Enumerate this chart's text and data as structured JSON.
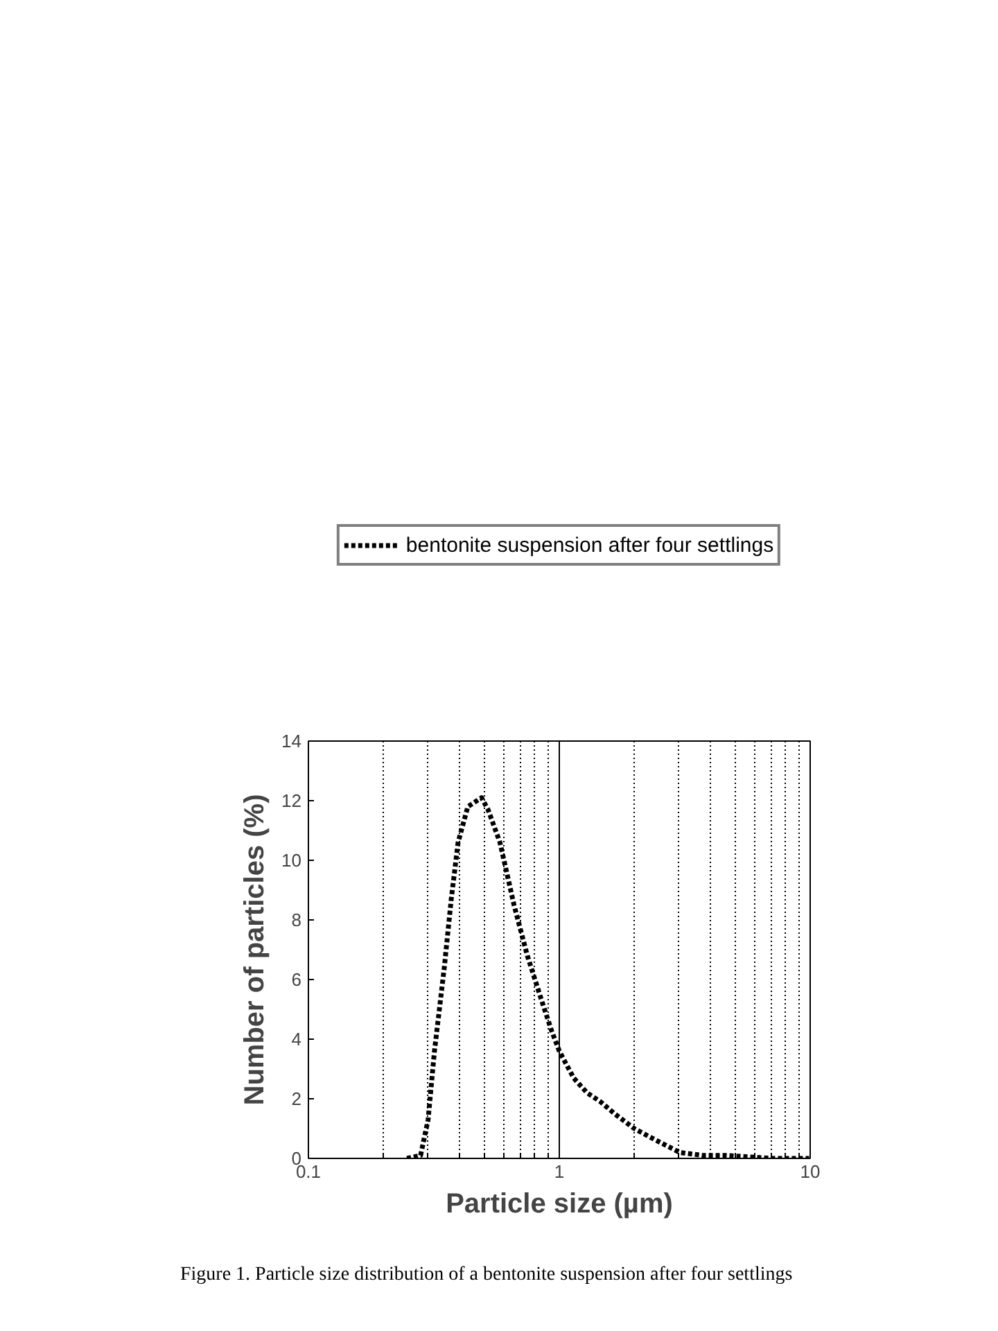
{
  "chart_data": {
    "type": "line",
    "xlabel": "Particle size (µm)",
    "ylabel": "Number of particles (%)",
    "series": [
      {
        "name": "bentonite suspension after four settlings",
        "color": "#000000",
        "line_style": "dotted",
        "x": [
          0.247,
          0.28,
          0.3,
          0.318,
          0.348,
          0.371,
          0.395,
          0.432,
          0.49,
          0.52,
          0.58,
          0.66,
          0.746,
          0.85,
          0.93,
          1.0,
          1.14,
          1.29,
          1.46,
          1.66,
          1.99,
          2.44,
          3.02,
          3.75,
          4.6,
          7.1,
          9.9
        ],
        "values": [
          0,
          0.1,
          1.3,
          3.6,
          6.4,
          8.7,
          10.6,
          11.8,
          12.1,
          11.7,
          10.6,
          8.5,
          6.8,
          5.3,
          4.3,
          3.6,
          2.7,
          2.2,
          1.9,
          1.5,
          1.0,
          0.6,
          0.2,
          0.1,
          0.1,
          0.0,
          0
        ]
      }
    ],
    "log": "x",
    "xlim": [
      0.1,
      10
    ],
    "ylim": [
      0,
      14
    ],
    "xticks": [
      {
        "value": 0.1,
        "label": "0.1"
      },
      {
        "value": 0.2,
        "label": null
      },
      {
        "value": 0.3,
        "label": null
      },
      {
        "value": 0.4,
        "label": null
      },
      {
        "value": 0.5,
        "label": null
      },
      {
        "value": 0.6,
        "label": null
      },
      {
        "value": 0.7,
        "label": null
      },
      {
        "value": 0.8,
        "label": null
      },
      {
        "value": 0.9,
        "label": null
      },
      1,
      {
        "value": 2,
        "label": null
      },
      {
        "value": 3,
        "label": null
      },
      {
        "value": 4,
        "label": null
      },
      {
        "value": 5,
        "label": null
      },
      {
        "value": 6,
        "label": null
      },
      {
        "value": 7,
        "label": null
      },
      {
        "value": 8,
        "label": null
      },
      {
        "value": 9,
        "label": null
      },
      10
    ],
    "yticks": [
      0,
      2,
      4,
      6,
      8,
      10,
      12,
      14
    ],
    "grid": "x",
    "legend": "top",
    "ref_lines": [
      {
        "axis": "x",
        "value": 1,
        "color": "#000000",
        "line_style": "solid"
      }
    ],
    "annotations": [
      "Figure 1. Particle size distribution of a bentonite suspension after four settlings"
    ]
  }
}
